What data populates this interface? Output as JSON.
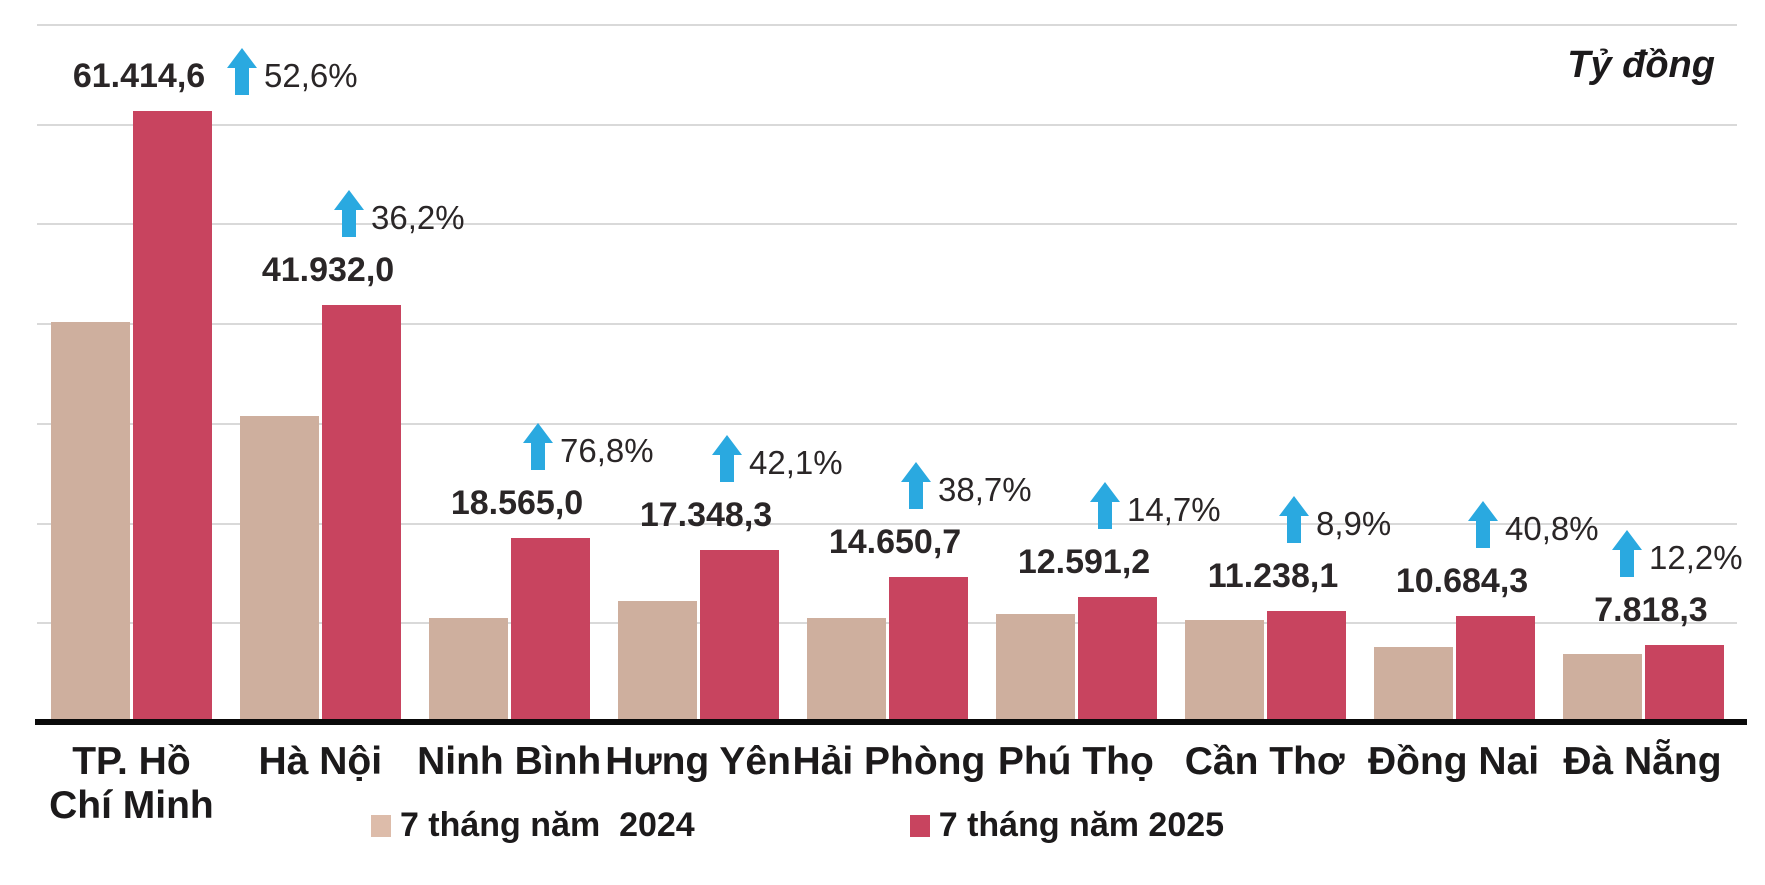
{
  "unit_label": "Tỷ đồng",
  "colors": {
    "bar_2024": "#CEAF9E",
    "bar_2025": "#C8445F",
    "legend_swatch_2024": "#DDBCAA",
    "legend_swatch_2025": "#C8445F",
    "arrow_blue": "#2AA9E0",
    "label_text": "#2A2627",
    "axis_text": "#1C1A1B",
    "gridline": "#D9D9D9",
    "axis_line": "#0A0A0A"
  },
  "legend": [
    {
      "label": "7 tháng năm  2024",
      "swatch_key": "legend_swatch_2024"
    },
    {
      "label": "7 tháng năm 2025",
      "swatch_key": "legend_swatch_2025"
    }
  ],
  "chart_data": {
    "type": "bar",
    "title": "",
    "unit": "Tỷ đồng",
    "categories": [
      "TP. Hồ Chí Minh",
      "Hà Nội",
      "Ninh Bình",
      "Hưng Yên",
      "Hải Phòng",
      "Phú Thọ",
      "Cần Thơ",
      "Đồng Nai",
      "Đà Nẵng"
    ],
    "series": [
      {
        "name": "7 tháng năm 2024",
        "values": [
          40245,
          30786,
          10501,
          12209,
          10563,
          10978,
          10320,
          7588,
          6968
        ],
        "values_estimated_from_growth": true,
        "labels_shown": false
      },
      {
        "name": "7 tháng năm 2025",
        "values": [
          61414.6,
          41932.0,
          18565.0,
          17348.3,
          14650.7,
          12591.2,
          11238.1,
          10684.3,
          7818.3
        ],
        "value_labels": [
          "61.414,6",
          "41.932,0",
          "18.565,0",
          "17.348,3",
          "14.650,7",
          "12.591,2",
          "11.238,1",
          "10.684,3",
          "7.818,3"
        ]
      }
    ],
    "growth_labels": [
      "52,6%",
      "36,2%",
      "76,8%",
      "42,1%",
      "38,7%",
      "14,7%",
      "8,9%",
      "40,8%",
      "12,2%"
    ],
    "growth_direction": "up",
    "ylim": [
      0,
      70000
    ],
    "grid_interval": 10000,
    "grid": true,
    "y_axis_labels_shown": false,
    "legend_position": "bottom"
  }
}
